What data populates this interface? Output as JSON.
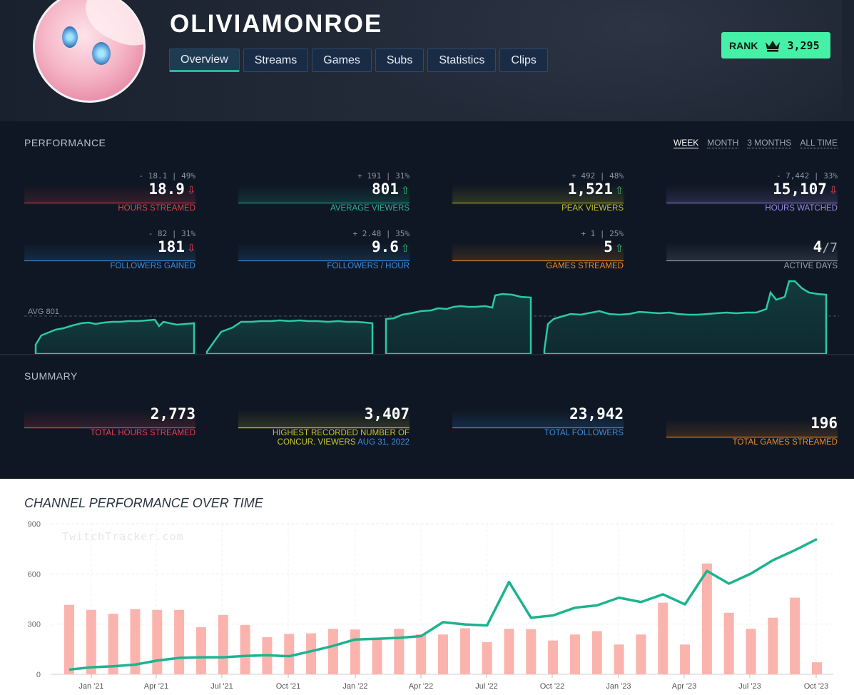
{
  "header": {
    "channel_name": "OLIVIAMONROE",
    "tabs": [
      {
        "label": "Overview",
        "active": true
      },
      {
        "label": "Streams",
        "active": false
      },
      {
        "label": "Games",
        "active": false
      },
      {
        "label": "Subs",
        "active": false
      },
      {
        "label": "Statistics",
        "active": false
      },
      {
        "label": "Clips",
        "active": false
      }
    ],
    "rank": {
      "label": "RANK",
      "value": "3,295",
      "icon": "crown-icon",
      "color": "#45f1a6"
    }
  },
  "performance": {
    "title": "PERFORMANCE",
    "ranges": [
      {
        "label": "WEEK",
        "active": true
      },
      {
        "label": "MONTH",
        "active": false
      },
      {
        "label": "3 MONTHS",
        "active": false
      },
      {
        "label": "ALL TIME",
        "active": false
      }
    ],
    "stats": [
      {
        "delta": "- 18.1 | 49%",
        "value": "18.9",
        "arrow": "down",
        "label": "HOURS STREAMED",
        "color": "#e8424f"
      },
      {
        "delta": "+ 191 | 31%",
        "value": "801",
        "arrow": "up",
        "label": "AVERAGE VIEWERS",
        "color": "#2bb59a"
      },
      {
        "delta": "+ 492 | 48%",
        "value": "1,521",
        "arrow": "up",
        "label": "PEAK VIEWERS",
        "color": "#c8c62a"
      },
      {
        "delta": "- 7,442 | 33%",
        "value": "15,107",
        "arrow": "down",
        "label": "HOURS WATCHED",
        "color": "#9b8ae6"
      },
      {
        "delta": "- 82 | 31%",
        "value": "181",
        "arrow": "down",
        "label": "FOLLOWERS GAINED",
        "color": "#3b8fe0"
      },
      {
        "delta": "+ 2.48 | 35%",
        "value": "9.6",
        "arrow": "up",
        "label": "FOLLOWERS / HOUR",
        "color": "#3b8fe0"
      },
      {
        "delta": "+ 1 | 25%",
        "value": "5",
        "arrow": "up",
        "label": "GAMES STREAMED",
        "color": "#f08a24"
      },
      {
        "delta": "",
        "value": "4",
        "total": "/7",
        "arrow": "",
        "label": "ACTIVE DAYS",
        "color": "#9aa4b2"
      }
    ],
    "avg_label": "AVG 801"
  },
  "summary": {
    "title": "SUMMARY",
    "stats": [
      {
        "value": "2,773",
        "label": "TOTAL HOURS STREAMED",
        "color": "#e8424f"
      },
      {
        "value": "3,407",
        "label_line1": "HIGHEST RECORDED NUMBER OF",
        "label_line2": "CONCUR. VIEWERS",
        "date": "AUG 31, 2022",
        "color": "#c8c62a"
      },
      {
        "value": "23,942",
        "label": "TOTAL FOLLOWERS",
        "color": "#3b8fe0"
      },
      {
        "value": "196",
        "label": "TOTAL GAMES STREAMED",
        "color": "#f08a24"
      }
    ]
  },
  "watermark": "TwitchTracker.com",
  "chart_data": {
    "type": "bar",
    "title": "CHANNEL PERFORMANCE OVER TIME",
    "ylim": [
      0,
      900
    ],
    "yticks": [
      0,
      300,
      600,
      900
    ],
    "x_ticks": [
      "Jan '21",
      "Apr '21",
      "Jul '21",
      "Oct '21",
      "Jan '22",
      "Apr '22",
      "Jul '22",
      "Oct '22",
      "Jan '23",
      "Apr '23",
      "Jul '23",
      "Oct '23"
    ],
    "grid": true,
    "series": [
      {
        "kind": "bar",
        "color": "#fbb4ad",
        "values": [
          415,
          385,
          362,
          390,
          385,
          385,
          282,
          355,
          295,
          222,
          242,
          245,
          272,
          268,
          218,
          272,
          240,
          238,
          275,
          192,
          272,
          270,
          202,
          238,
          258,
          178,
          238,
          428,
          178,
          662,
          368,
          272,
          338,
          458,
          72
        ]
      },
      {
        "kind": "line",
        "color": "#1db38f",
        "values": [
          28,
          42,
          48,
          58,
          82,
          98,
          102,
          102,
          110,
          114,
          108,
          138,
          170,
          208,
          212,
          218,
          228,
          312,
          298,
          292,
          552,
          338,
          352,
          398,
          412,
          458,
          432,
          478,
          418,
          618,
          542,
          602,
          682,
          742,
          808
        ]
      }
    ]
  }
}
